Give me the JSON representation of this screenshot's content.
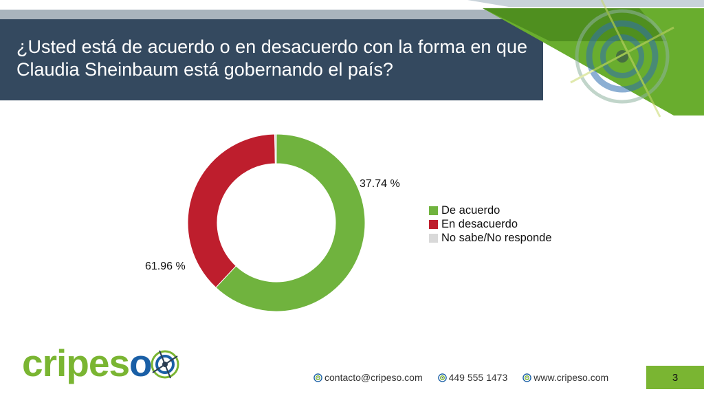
{
  "slide": {
    "title": "¿Usted está de acuerdo o en desacuerdo con la forma en que Claudia Sheinbaum está gobernando el país?",
    "page_number": "3"
  },
  "chart_data": {
    "type": "pie",
    "variant": "donut",
    "categories": [
      "De acuerdo",
      "En desacuerdo",
      "No sabe/No responde"
    ],
    "values": [
      61.96,
      37.74,
      0.3
    ],
    "data_labels": [
      "61.96 %",
      "37.74 %",
      ""
    ],
    "colors": [
      "#70b33e",
      "#be1e2d",
      "#d9d9d9"
    ],
    "legend_position": "right"
  },
  "logo": {
    "text_green": "cripes",
    "text_blue": "o",
    "mark_icon": "crosshair-target-icon"
  },
  "footer": {
    "email": "contacto@cripeso.com",
    "phone": "449 555 1473",
    "website": "www.cripeso.com",
    "icon": "target-icon"
  },
  "theme": {
    "title_band": "#34495f",
    "accent_green": "#7ab532",
    "brand_blue": "#1a5fa6"
  }
}
